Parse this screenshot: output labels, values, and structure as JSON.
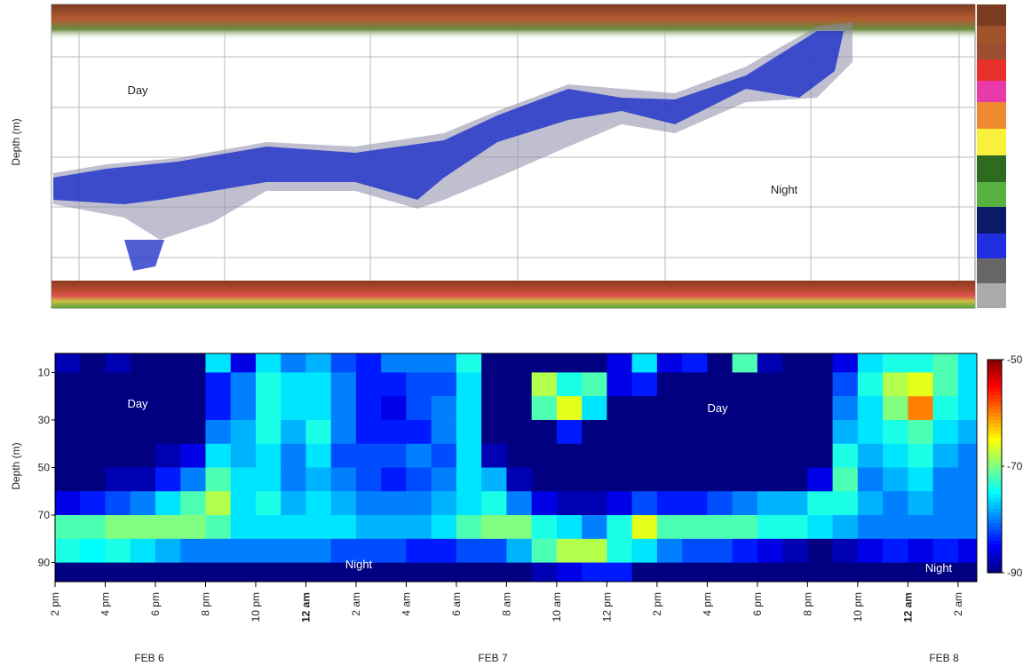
{
  "echogram": {
    "y_label": "Depth (m)",
    "annotations": [
      "Day",
      "Night"
    ]
  },
  "chart_data": {
    "type": "heatmap",
    "y_label": "Depth (m)",
    "annotations": [
      "Day",
      "Day",
      "Night",
      "Night"
    ],
    "date_labels": [
      "FEB 6",
      "FEB 7",
      "FEB 8"
    ],
    "xlim": [
      0,
      36.75
    ],
    "ylim": [
      2,
      98
    ],
    "y_reversed": true,
    "yticks": [
      10,
      30,
      50,
      70,
      90
    ],
    "xticks": [
      {
        "value": 0,
        "label": "2 pm"
      },
      {
        "value": 2,
        "label": "4 pm"
      },
      {
        "value": 4,
        "label": "6 pm"
      },
      {
        "value": 6,
        "label": "8 pm"
      },
      {
        "value": 8,
        "label": "10 pm"
      },
      {
        "value": 10,
        "label": "12 am",
        "bold": true
      },
      {
        "value": 12,
        "label": "2 am"
      },
      {
        "value": 14,
        "label": "4 am"
      },
      {
        "value": 16,
        "label": "6 am"
      },
      {
        "value": 18,
        "label": "8 am"
      },
      {
        "value": 20,
        "label": "10 am"
      },
      {
        "value": 22,
        "label": "12 pm"
      },
      {
        "value": 24,
        "label": "2 pm"
      },
      {
        "value": 26,
        "label": "4 pm"
      },
      {
        "value": 28,
        "label": "6 pm"
      },
      {
        "value": 30,
        "label": "8 pm"
      },
      {
        "value": 32,
        "label": "10 pm"
      },
      {
        "value": 34,
        "label": "12 am",
        "bold": true
      },
      {
        "value": 36,
        "label": "2 am"
      }
    ],
    "clim": [
      -90,
      -50
    ],
    "cticks": [
      -50,
      -70,
      -90
    ],
    "colormap": "jet",
    "x_bins": [
      0,
      1,
      2,
      3,
      4,
      5,
      6,
      7,
      8,
      9,
      10,
      11,
      12,
      13,
      14,
      15,
      16,
      17,
      18,
      19,
      20,
      21,
      22,
      23,
      24,
      25,
      26,
      27,
      28,
      29,
      30,
      31,
      32,
      33,
      34,
      35,
      36,
      36.75
    ],
    "y_bins": [
      2,
      10,
      20,
      30,
      40,
      50,
      60,
      70,
      80,
      90,
      98
    ],
    "values": [
      [
        -88,
        -90,
        -90,
        -90,
        -90,
        -90,
        -86,
        -72,
        -74,
        -90
      ],
      [
        -90,
        -90,
        -90,
        -90,
        -90,
        -90,
        -84,
        -72,
        -75,
        -90
      ],
      [
        -88,
        -90,
        -90,
        -90,
        -90,
        -88,
        -82,
        -70,
        -74,
        -90
      ],
      [
        -90,
        -90,
        -90,
        -90,
        -90,
        -88,
        -80,
        -70,
        -76,
        -90
      ],
      [
        -90,
        -90,
        -90,
        -90,
        -88,
        -84,
        -76,
        -70,
        -78,
        -90
      ],
      [
        -90,
        -90,
        -90,
        -90,
        -86,
        -80,
        -72,
        -70,
        -80,
        -90
      ],
      [
        -76,
        -84,
        -84,
        -80,
        -76,
        -72,
        -68,
        -72,
        -80,
        -90
      ],
      [
        -86,
        -80,
        -80,
        -78,
        -78,
        -76,
        -76,
        -76,
        -80,
        -90
      ],
      [
        -76,
        -74,
        -74,
        -74,
        -76,
        -76,
        -74,
        -76,
        -80,
        -90
      ],
      [
        -80,
        -76,
        -76,
        -78,
        -80,
        -80,
        -78,
        -76,
        -80,
        -90
      ],
      [
        -78,
        -76,
        -76,
        -74,
        -76,
        -78,
        -76,
        -76,
        -80,
        -90
      ],
      [
        -82,
        -80,
        -80,
        -80,
        -82,
        -80,
        -78,
        -76,
        -82,
        -90
      ],
      [
        -84,
        -84,
        -84,
        -84,
        -82,
        -82,
        -80,
        -78,
        -82,
        -90
      ],
      [
        -80,
        -84,
        -86,
        -84,
        -82,
        -84,
        -80,
        -78,
        -82,
        -90
      ],
      [
        -80,
        -82,
        -82,
        -84,
        -80,
        -82,
        -80,
        -78,
        -84,
        -90
      ],
      [
        -80,
        -82,
        -80,
        -80,
        -82,
        -80,
        -78,
        -76,
        -84,
        -90
      ],
      [
        -74,
        -76,
        -76,
        -76,
        -76,
        -76,
        -76,
        -72,
        -82,
        -90
      ],
      [
        -90,
        -90,
        -90,
        -90,
        -88,
        -78,
        -74,
        -70,
        -82,
        -90
      ],
      [
        -90,
        -90,
        -90,
        -90,
        -90,
        -88,
        -80,
        -70,
        -78,
        -90
      ],
      [
        -90,
        -68,
        -72,
        -90,
        -90,
        -90,
        -86,
        -74,
        -72,
        -88
      ],
      [
        -90,
        -74,
        -66,
        -84,
        -90,
        -90,
        -88,
        -76,
        -68,
        -86
      ],
      [
        -90,
        -72,
        -76,
        -90,
        -90,
        -90,
        -88,
        -80,
        -68,
        -84
      ],
      [
        -86,
        -86,
        -90,
        -90,
        -90,
        -90,
        -86,
        -74,
        -74,
        -84
      ],
      [
        -76,
        -84,
        -90,
        -90,
        -90,
        -90,
        -82,
        -66,
        -76,
        -90
      ],
      [
        -86,
        -90,
        -90,
        -90,
        -90,
        -90,
        -84,
        -72,
        -80,
        -90
      ],
      [
        -84,
        -90,
        -90,
        -90,
        -90,
        -90,
        -84,
        -72,
        -82,
        -90
      ],
      [
        -90,
        -90,
        -90,
        -90,
        -90,
        -90,
        -82,
        -72,
        -82,
        -90
      ],
      [
        -72,
        -90,
        -90,
        -90,
        -90,
        -90,
        -80,
        -72,
        -84,
        -90
      ],
      [
        -88,
        -90,
        -90,
        -90,
        -90,
        -90,
        -78,
        -74,
        -86,
        -90
      ],
      [
        -90,
        -90,
        -90,
        -90,
        -90,
        -90,
        -78,
        -74,
        -88,
        -90
      ],
      [
        -90,
        -90,
        -90,
        -90,
        -90,
        -86,
        -74,
        -76,
        -90,
        -90
      ],
      [
        -86,
        -82,
        -80,
        -78,
        -74,
        -72,
        -74,
        -78,
        -88,
        -90
      ],
      [
        -76,
        -74,
        -76,
        -76,
        -78,
        -80,
        -78,
        -80,
        -86,
        -90
      ],
      [
        -74,
        -68,
        -70,
        -74,
        -76,
        -78,
        -80,
        -80,
        -84,
        -90
      ],
      [
        -74,
        -66,
        -60,
        -72,
        -74,
        -76,
        -78,
        -80,
        -86,
        -90
      ],
      [
        -72,
        -72,
        -74,
        -76,
        -78,
        -80,
        -80,
        -80,
        -84,
        -90
      ],
      [
        -76,
        -76,
        -76,
        -78,
        -80,
        -80,
        -80,
        -80,
        -86,
        -90
      ]
    ]
  }
}
